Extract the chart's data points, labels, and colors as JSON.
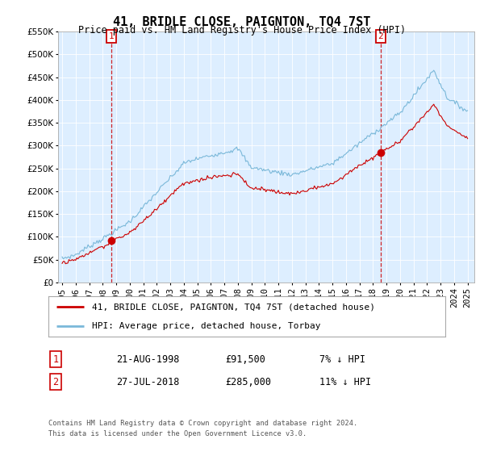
{
  "title": "41, BRIDLE CLOSE, PAIGNTON, TQ4 7ST",
  "subtitle": "Price paid vs. HM Land Registry's House Price Index (HPI)",
  "legend_line1": "41, BRIDLE CLOSE, PAIGNTON, TQ4 7ST (detached house)",
  "legend_line2": "HPI: Average price, detached house, Torbay",
  "transactions": [
    {
      "num": "1",
      "date": "21-AUG-1998",
      "price": "£91,500",
      "pct": "7% ↓ HPI"
    },
    {
      "num": "2",
      "date": "27-JUL-2018",
      "price": "£285,000",
      "pct": "11% ↓ HPI"
    }
  ],
  "transaction_years": [
    1998.64,
    2018.57
  ],
  "transaction_prices": [
    91500,
    285000
  ],
  "footnote1": "Contains HM Land Registry data © Crown copyright and database right 2024.",
  "footnote2": "This data is licensed under the Open Government Licence v3.0.",
  "ylim": [
    0,
    550000
  ],
  "yticks": [
    0,
    50000,
    100000,
    150000,
    200000,
    250000,
    300000,
    350000,
    400000,
    450000,
    500000,
    550000
  ],
  "hpi_color": "#7ab8d9",
  "property_color": "#cc0000",
  "marker_color": "#cc0000",
  "vline_color": "#cc0000",
  "plot_bg_color": "#ddeeff",
  "background_color": "#ffffff",
  "grid_color": "#ffffff",
  "title_fontsize": 11,
  "subtitle_fontsize": 9,
  "axis_fontsize": 7.5,
  "annotation_num_color": "#cc0000",
  "anno_box_color": "#cc0000"
}
